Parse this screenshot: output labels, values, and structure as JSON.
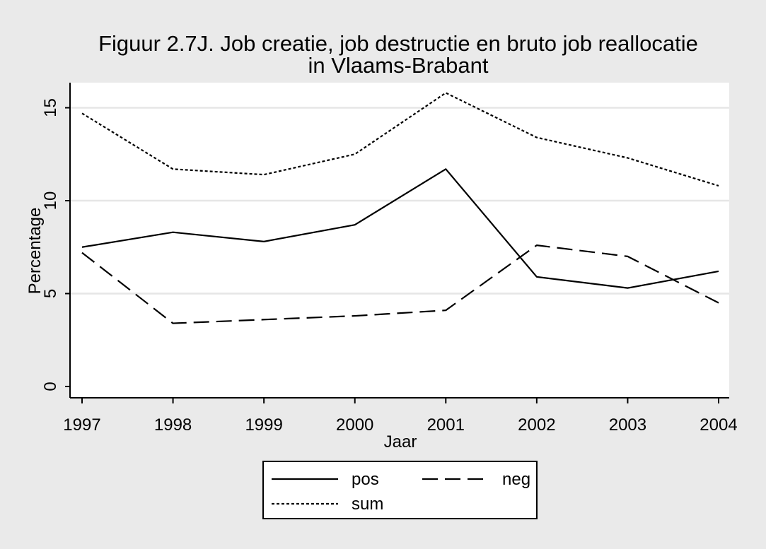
{
  "chart_data": {
    "type": "line",
    "title": "Figuur 2.7J. Job creatie, job destructie en bruto job reallocatie",
    "subtitle": "in Vlaams-Brabant",
    "xlabel": "Jaar",
    "ylabel": "Percentage",
    "x": [
      1997,
      1998,
      1999,
      2000,
      2001,
      2002,
      2003,
      2004
    ],
    "x_tick_labels": [
      "1997",
      "1998",
      "1999",
      "2000",
      "2001",
      "2002",
      "2003",
      "2004"
    ],
    "xlim": [
      1997,
      2004
    ],
    "ylim": [
      0,
      15.7
    ],
    "y_ticks": [
      0,
      5,
      10,
      15
    ],
    "y_tick_labels": [
      "0",
      "5",
      "10",
      "15"
    ],
    "grid": true,
    "legend_position": "bottom",
    "series": [
      {
        "name": "pos",
        "dash": "solid",
        "values": [
          7.5,
          8.3,
          7.8,
          8.7,
          11.7,
          5.9,
          5.3,
          6.2
        ]
      },
      {
        "name": "neg",
        "dash": "long",
        "values": [
          7.2,
          3.4,
          3.6,
          3.8,
          4.1,
          7.6,
          7.0,
          4.5
        ]
      },
      {
        "name": "sum",
        "dash": "short",
        "values": [
          14.7,
          11.7,
          11.4,
          12.5,
          15.8,
          13.4,
          12.3,
          10.8
        ]
      }
    ],
    "colors": {
      "background": "#eaeaea",
      "plot_background": "#ffffff",
      "grid": "#e6e6e6",
      "line": "#000000"
    }
  }
}
